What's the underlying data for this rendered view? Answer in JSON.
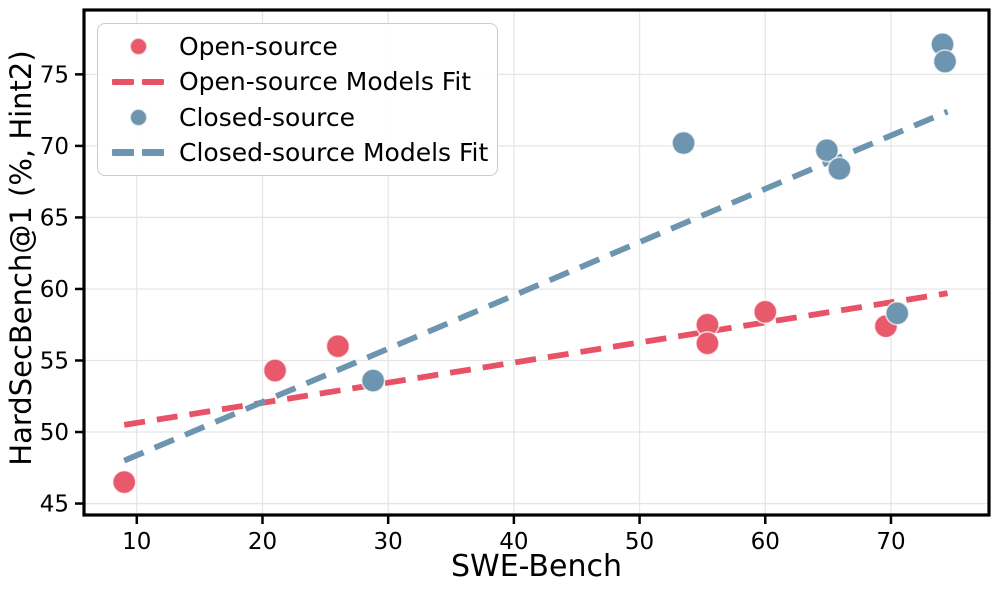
{
  "chart_data": {
    "type": "scatter",
    "title": "",
    "xlabel": "SWE-Bench",
    "ylabel": "HardSecBench@1 (%, Hint2)",
    "xlim": [
      5.8,
      77.8
    ],
    "ylim": [
      44.2,
      79.5
    ],
    "xticks": [
      10,
      20,
      30,
      40,
      50,
      60,
      70
    ],
    "yticks": [
      45,
      50,
      55,
      60,
      65,
      70,
      75
    ],
    "xtick_labels": [
      "10",
      "20",
      "30",
      "40",
      "50",
      "60",
      "70"
    ],
    "ytick_labels": [
      "45",
      "50",
      "55",
      "60",
      "65",
      "70",
      "75"
    ],
    "grid": true,
    "grid_color": "#e6e6e6",
    "spine_color": "#000000",
    "legend_position": "upper-left",
    "series": [
      {
        "name": "Open-source",
        "color": "#E7596B",
        "marker": "circle",
        "points": [
          [
            9.0,
            46.5
          ],
          [
            21.0,
            54.3
          ],
          [
            26.0,
            56.0
          ],
          [
            55.4,
            57.5
          ],
          [
            55.4,
            56.2
          ],
          [
            60.0,
            58.4
          ],
          [
            69.6,
            57.4
          ]
        ]
      },
      {
        "name": "Closed-source",
        "color": "#6D95AF",
        "marker": "circle",
        "points": [
          [
            28.8,
            53.6
          ],
          [
            53.5,
            70.2
          ],
          [
            64.9,
            69.7
          ],
          [
            65.9,
            68.4
          ],
          [
            70.5,
            58.3
          ],
          [
            74.1,
            77.1
          ],
          [
            74.3,
            75.9
          ]
        ]
      }
    ],
    "fits": [
      {
        "name": "Open-source Models Fit",
        "color": "#E85266",
        "style": "dashed",
        "x": [
          9.0,
          74.5
        ],
        "y": [
          50.5,
          59.7
        ]
      },
      {
        "name": "Closed-source Models Fit",
        "color": "#6D95AF",
        "style": "dashed",
        "x": [
          9.0,
          74.5
        ],
        "y": [
          48.0,
          72.4
        ]
      }
    ],
    "legend": {
      "items": [
        {
          "label": "Open-source",
          "marker": "circle",
          "color": "#E7596B"
        },
        {
          "label": "Open-source Models Fit",
          "marker": "dashes",
          "color": "#E85266"
        },
        {
          "label": "Closed-source",
          "marker": "circle",
          "color": "#6D95AF"
        },
        {
          "label": "Closed-source Models Fit",
          "marker": "dashes",
          "color": "#6D95AF"
        }
      ]
    }
  }
}
